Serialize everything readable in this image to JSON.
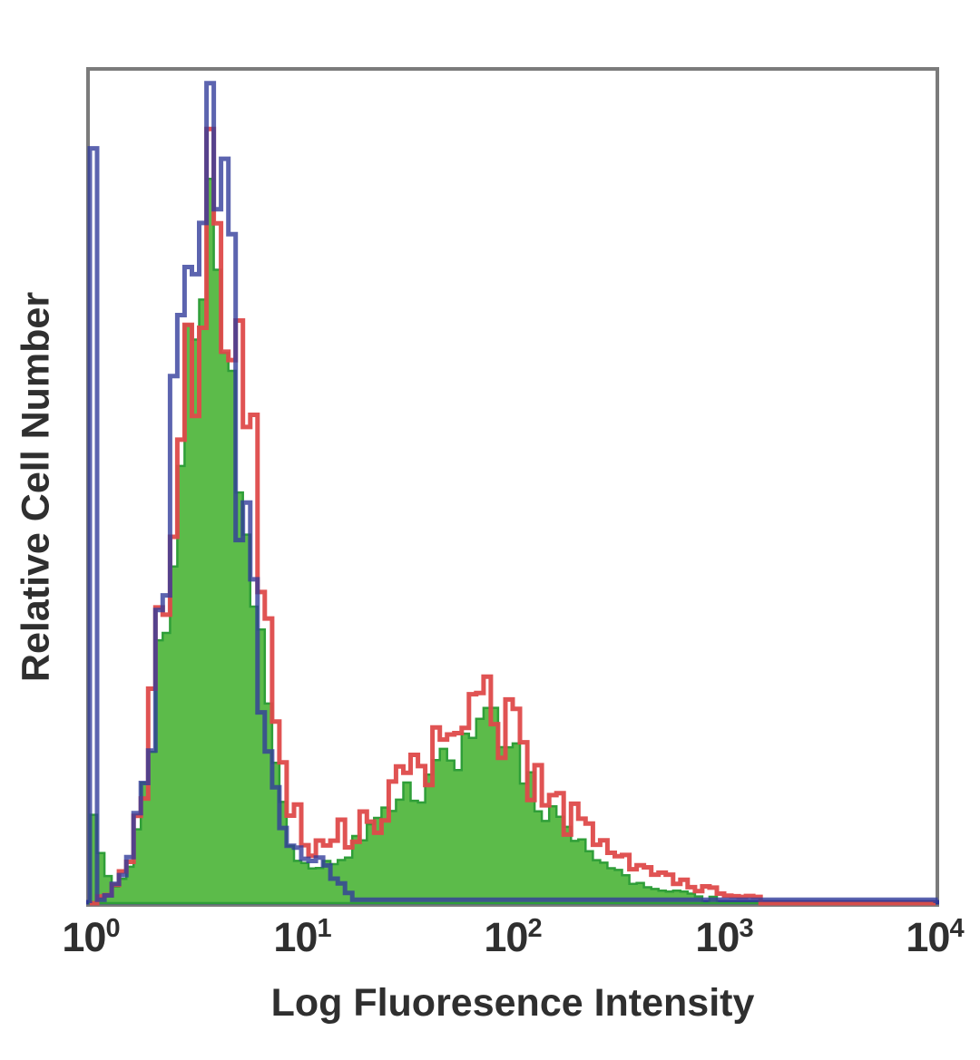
{
  "chart_data": {
    "type": "area",
    "variant": "flow-cytometry-overlay-histogram",
    "title": "",
    "xlabel": "Log Fluoresence Intensity",
    "ylabel": "Relative Cell Number",
    "x_scale": "log10",
    "x_range": [
      1,
      10000
    ],
    "x_log_range": [
      0,
      4
    ],
    "grid": false,
    "legend": false,
    "y_axis_ticks": "none (relative scale)",
    "x_ticks": [
      {
        "value": 1,
        "base": "10",
        "exp": "0"
      },
      {
        "value": 10,
        "base": "10",
        "exp": "1"
      },
      {
        "value": 100,
        "base": "10",
        "exp": "2"
      },
      {
        "value": 1000,
        "base": "10",
        "exp": "3"
      },
      {
        "value": 10000,
        "base": "10",
        "exp": "4"
      }
    ],
    "frame_color": "#7b7b7b",
    "axis_line_color": "#2b3490",
    "text_color": "#2f2f2f",
    "bins": 116,
    "noise_seed": 20,
    "cut_threshold": 0.0075,
    "series": [
      {
        "name": "green-filled",
        "description": "filled green histogram: negative peak near 3.5 and positive peak near 70",
        "style": "filled",
        "fill_color": "#5cbb4a",
        "edge_color": "#2f9e38",
        "edge_width": 2.5,
        "opacity": 1,
        "noise": 0.4,
        "max": 0.87,
        "peaks": [
          {
            "center_log": 0.57,
            "sigma_log": 0.16,
            "amplitude": 0.84
          },
          {
            "center_log": 1.82,
            "sigma_log": 0.28,
            "amplitude": 0.185
          },
          {
            "center_log": 1.25,
            "sigma_log": 0.25,
            "amplitude": 0.045
          },
          {
            "center_log": 2.25,
            "sigma_log": 0.4,
            "amplitude": 0.03
          },
          {
            "center_log": 0.0,
            "sigma_log": 0.05,
            "amplitude": 0.1
          }
        ]
      },
      {
        "name": "red-outline",
        "description": "red open histogram: negative peak near 3.7 and positive peak near 70 with spiky tail to 1000",
        "style": "outline",
        "stroke_color": "#de4a4a",
        "line_width": 5,
        "opacity": 0.95,
        "noise": 0.55,
        "max": 0.93,
        "peaks": [
          {
            "center_log": 0.58,
            "sigma_log": 0.17,
            "amplitude": 0.88
          },
          {
            "center_log": 1.83,
            "sigma_log": 0.3,
            "amplitude": 0.195
          },
          {
            "center_log": 1.2,
            "sigma_log": 0.25,
            "amplitude": 0.06
          },
          {
            "center_log": 2.35,
            "sigma_log": 0.42,
            "amplitude": 0.04
          }
        ]
      },
      {
        "name": "blue-outline",
        "description": "blue open histogram: single negative peak near 3.5 with axis pile-up spike at 10^0, flat to 10^4",
        "style": "outline",
        "stroke_color": "#333d9b",
        "line_width": 5,
        "opacity": 0.8,
        "noise": 0.45,
        "max": 0.985,
        "edge_spike": 0.93,
        "baseline": 0.004,
        "peaks": [
          {
            "center_log": 0.55,
            "sigma_log": 0.155,
            "amplitude": 0.92
          },
          {
            "center_log": 1.03,
            "sigma_log": 0.12,
            "amplitude": 0.05
          }
        ]
      }
    ]
  }
}
